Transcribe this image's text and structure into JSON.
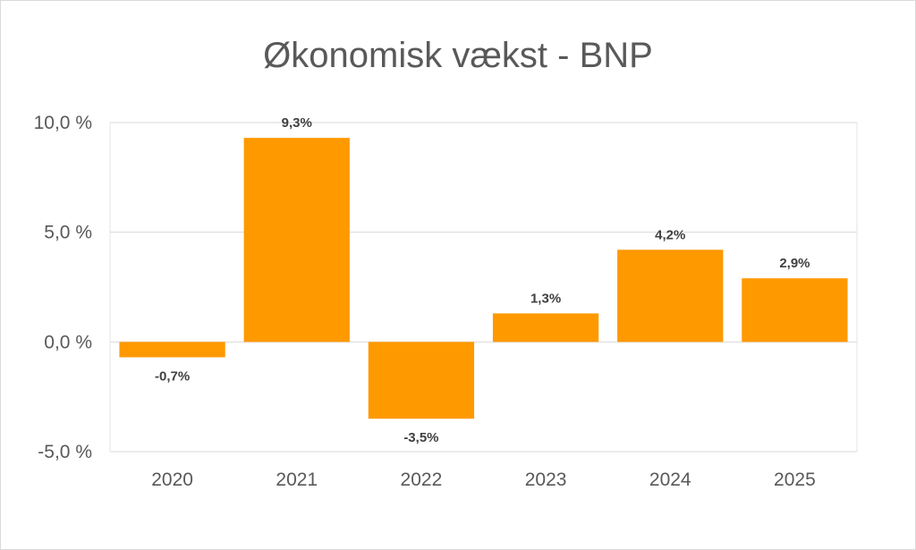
{
  "chart_data": {
    "type": "bar",
    "title": "Økonomisk vækst - BNP",
    "categories": [
      "2020",
      "2021",
      "2022",
      "2023",
      "2024",
      "2025"
    ],
    "values": [
      -0.7,
      9.3,
      -3.5,
      1.3,
      4.2,
      2.9
    ],
    "data_labels": [
      "-0,7%",
      "9,3%",
      "-3,5%",
      "1,3%",
      "4,2%",
      "2,9%"
    ],
    "ylim": [
      -5,
      10
    ],
    "yticks": [
      -5,
      0,
      5,
      10
    ],
    "ytick_labels": [
      "-5,0 %",
      "0,0 %",
      "5,0 %",
      "10,0 %"
    ],
    "grid": true,
    "legend": "none",
    "bar_color": "#ff9900"
  }
}
